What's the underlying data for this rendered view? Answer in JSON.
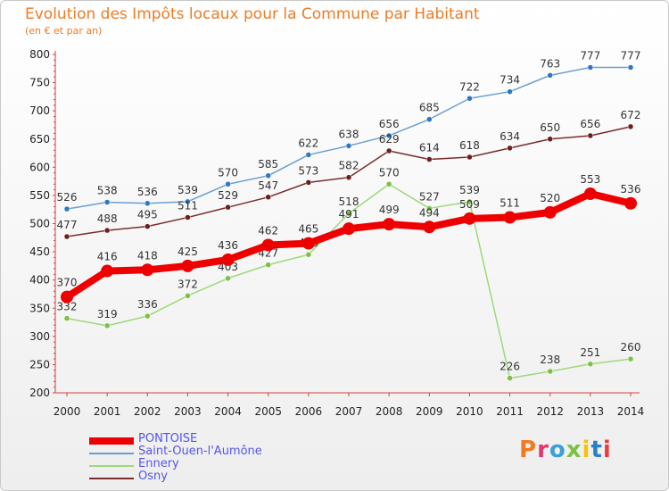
{
  "title": "Evolution des Impôts locaux pour la Commune par Habitant",
  "subtitle": "(en € et par an)",
  "logo": {
    "text": "Proxiti",
    "colors": [
      "#f07b22",
      "#e5356f",
      "#3aa0d8",
      "#7cc142",
      "#f4c20d",
      "#2b7fc8",
      "#ee3b3b"
    ]
  },
  "chart_data": {
    "type": "line",
    "title": "Evolution des Impôts locaux pour la Commune par Habitant",
    "subtitle": "(en € et par an)",
    "x": [
      "2000",
      "2001",
      "2002",
      "2003",
      "2004",
      "2005",
      "2006",
      "2007",
      "2008",
      "2009",
      "2010",
      "2011",
      "2012",
      "2013",
      "2014"
    ],
    "ylim": [
      200,
      800
    ],
    "yticks": [
      200,
      250,
      300,
      350,
      400,
      450,
      500,
      550,
      600,
      650,
      700,
      750,
      800
    ],
    "grid": false,
    "legend_position": "bottom-left",
    "series": [
      {
        "name": "Saint-Ouen-l'Aumône",
        "color": "#6a9fd0",
        "marker": "#2e78c2",
        "values": [
          526,
          538,
          536,
          539,
          570,
          585,
          622,
          638,
          656,
          685,
          722,
          734,
          763,
          777,
          777
        ]
      },
      {
        "name": "Osny",
        "color": "#7a2c2c",
        "marker": "#6b1f1f",
        "values": [
          477,
          488,
          495,
          511,
          529,
          547,
          573,
          582,
          629,
          614,
          618,
          634,
          650,
          656,
          672
        ]
      },
      {
        "name": "Ennery",
        "color": "#9fd87a",
        "marker": "#7cc142",
        "values": [
          332,
          319,
          336,
          372,
          403,
          427,
          445,
          518,
          570,
          527,
          539,
          226,
          238,
          251,
          260
        ]
      },
      {
        "name": "PONTOISE",
        "color": "#ee0000",
        "marker": "#ee0000",
        "values": [
          370,
          416,
          418,
          425,
          436,
          462,
          465,
          491,
          499,
          494,
          509,
          511,
          520,
          553,
          536
        ]
      }
    ]
  }
}
